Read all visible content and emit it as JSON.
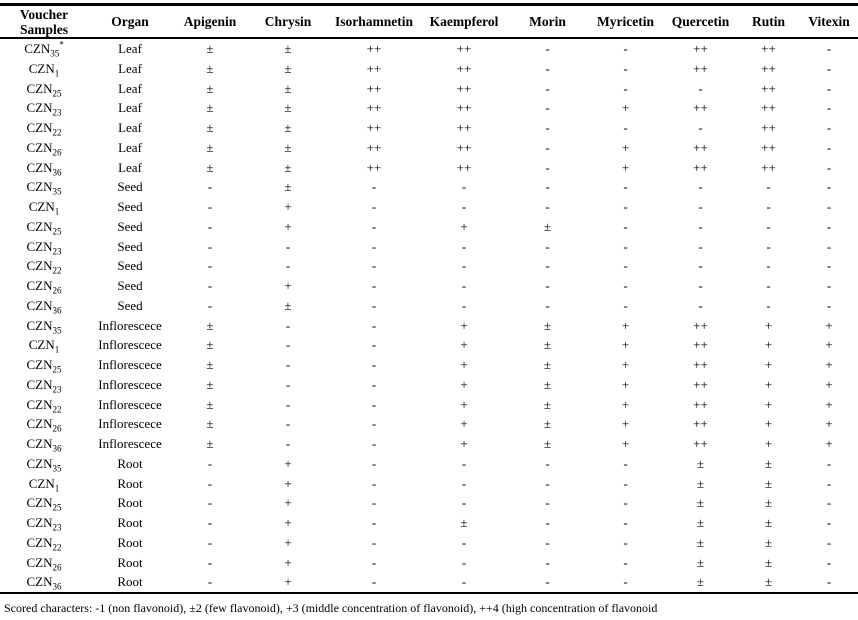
{
  "header": {
    "voucher_line1": "Voucher",
    "voucher_line2": "Samples",
    "columns": [
      "Organ",
      "Apigenin",
      "Chrysin",
      "Isorhamnetin",
      "Kaempferol",
      "Morin",
      "Myricetin",
      "Quercetin",
      "Rutin",
      "Vitexin"
    ]
  },
  "rows": [
    {
      "sample_base": "CZN",
      "sample_sub": "35",
      "sample_sup": "*",
      "organ": "Leaf",
      "scores": [
        "±",
        "±",
        "++",
        "++",
        "-",
        "-",
        "++",
        "++",
        "-"
      ]
    },
    {
      "sample_base": "CZN",
      "sample_sub": "1",
      "sample_sup": "",
      "organ": "Leaf",
      "scores": [
        "±",
        "±",
        "++",
        "++",
        "-",
        "-",
        "++",
        "++",
        "-"
      ]
    },
    {
      "sample_base": "CZN",
      "sample_sub": "25",
      "sample_sup": "",
      "organ": "Leaf",
      "scores": [
        "±",
        "±",
        "++",
        "++",
        "-",
        "-",
        "-",
        "++",
        "-"
      ]
    },
    {
      "sample_base": "CZN",
      "sample_sub": "23",
      "sample_sup": "",
      "organ": "Leaf",
      "scores": [
        "±",
        "±",
        "++",
        "++",
        "-",
        "+",
        "++",
        "++",
        "-"
      ]
    },
    {
      "sample_base": "CZN",
      "sample_sub": "22",
      "sample_sup": "",
      "organ": "Leaf",
      "scores": [
        "±",
        "±",
        "++",
        "++",
        "-",
        "-",
        "-",
        "++",
        "-"
      ]
    },
    {
      "sample_base": "CZN",
      "sample_sub": "26",
      "sample_sup": "",
      "organ": "Leaf",
      "scores": [
        "±",
        "±",
        "++",
        "++",
        "-",
        "+",
        "++",
        "++",
        "-"
      ]
    },
    {
      "sample_base": "CZN",
      "sample_sub": "36",
      "sample_sup": "",
      "organ": "Leaf",
      "scores": [
        "±",
        "±",
        "++",
        "++",
        "-",
        "+",
        "++",
        "++",
        "-"
      ]
    },
    {
      "sample_base": "CZN",
      "sample_sub": "35",
      "sample_sup": "",
      "organ": "Seed",
      "scores": [
        "-",
        "±",
        "-",
        "-",
        "-",
        "-",
        "-",
        "-",
        "-"
      ]
    },
    {
      "sample_base": "CZN",
      "sample_sub": "1",
      "sample_sup": "",
      "organ": "Seed",
      "scores": [
        "-",
        "+",
        "-",
        "-",
        "-",
        "-",
        "-",
        "-",
        "-"
      ]
    },
    {
      "sample_base": "CZN",
      "sample_sub": "25",
      "sample_sup": "",
      "organ": "Seed",
      "scores": [
        "-",
        "+",
        "-",
        "+",
        "±",
        "-",
        "-",
        "-",
        "-"
      ]
    },
    {
      "sample_base": "CZN",
      "sample_sub": "23",
      "sample_sup": "",
      "organ": "Seed",
      "scores": [
        "-",
        "-",
        "-",
        "-",
        "-",
        "-",
        "-",
        "-",
        "-"
      ]
    },
    {
      "sample_base": "CZN",
      "sample_sub": "22",
      "sample_sup": "",
      "organ": "Seed",
      "scores": [
        "-",
        "-",
        "-",
        "-",
        "-",
        "-",
        "-",
        "-",
        "-"
      ]
    },
    {
      "sample_base": "CZN",
      "sample_sub": "26",
      "sample_sup": "",
      "organ": "Seed",
      "scores": [
        "-",
        "+",
        "-",
        "-",
        "-",
        "-",
        "-",
        "-",
        "-"
      ]
    },
    {
      "sample_base": "CZN",
      "sample_sub": "36",
      "sample_sup": "",
      "organ": "Seed",
      "scores": [
        "-",
        "±",
        "-",
        "-",
        "-",
        "-",
        "-",
        "-",
        "-"
      ]
    },
    {
      "sample_base": "CZN",
      "sample_sub": "35",
      "sample_sup": "",
      "organ": "Inflorescece",
      "scores": [
        "±",
        "-",
        "-",
        "+",
        "±",
        "+",
        "++",
        "+",
        "+"
      ]
    },
    {
      "sample_base": "CZN",
      "sample_sub": "1",
      "sample_sup": "",
      "organ": "Inflorescece",
      "scores": [
        "±",
        "-",
        "-",
        "+",
        "±",
        "+",
        "++",
        "+",
        "+"
      ]
    },
    {
      "sample_base": "CZN",
      "sample_sub": "25",
      "sample_sup": "",
      "organ": "Inflorescece",
      "scores": [
        "±",
        "-",
        "-",
        "+",
        "±",
        "+",
        "++",
        "+",
        "+"
      ]
    },
    {
      "sample_base": "CZN",
      "sample_sub": "23",
      "sample_sup": "",
      "organ": "Inflorescece",
      "scores": [
        "±",
        "-",
        "-",
        "+",
        "±",
        "+",
        "++",
        "+",
        "+"
      ]
    },
    {
      "sample_base": "CZN",
      "sample_sub": "22",
      "sample_sup": "",
      "organ": "Inflorescece",
      "scores": [
        "±",
        "-",
        "-",
        "+",
        "±",
        "+",
        "++",
        "+",
        "+"
      ]
    },
    {
      "sample_base": "CZN",
      "sample_sub": "26",
      "sample_sup": "",
      "organ": "Inflorescece",
      "scores": [
        "±",
        "-",
        "-",
        "+",
        "±",
        "+",
        "++",
        "+",
        "+"
      ]
    },
    {
      "sample_base": "CZN",
      "sample_sub": "36",
      "sample_sup": "",
      "organ": "Inflorescece",
      "scores": [
        "±",
        "-",
        "-",
        "+",
        "±",
        "+",
        "++",
        "+",
        "+"
      ]
    },
    {
      "sample_base": "CZN",
      "sample_sub": "35",
      "sample_sup": "",
      "organ": "Root",
      "scores": [
        "-",
        "+",
        "-",
        "-",
        "-",
        "-",
        "±",
        "±",
        "-"
      ]
    },
    {
      "sample_base": "CZN",
      "sample_sub": "1",
      "sample_sup": "",
      "organ": "Root",
      "scores": [
        "-",
        "+",
        "-",
        "-",
        "-",
        "-",
        "±",
        "±",
        "-"
      ]
    },
    {
      "sample_base": "CZN",
      "sample_sub": "25",
      "sample_sup": "",
      "organ": "Root",
      "scores": [
        "-",
        "+",
        "-",
        "-",
        "-",
        "-",
        "±",
        "±",
        "-"
      ]
    },
    {
      "sample_base": "CZN",
      "sample_sub": "23",
      "sample_sup": "",
      "organ": "Root",
      "scores": [
        "-",
        "+",
        "-",
        "±",
        "-",
        "-",
        "±",
        "±",
        "-"
      ]
    },
    {
      "sample_base": "CZN",
      "sample_sub": "22",
      "sample_sup": "",
      "organ": "Root",
      "scores": [
        "-",
        "+",
        "-",
        "-",
        "-",
        "-",
        "±",
        "±",
        "-"
      ]
    },
    {
      "sample_base": "CZN",
      "sample_sub": "26",
      "sample_sup": "",
      "organ": "Root",
      "scores": [
        "-",
        "+",
        "-",
        "-",
        "-",
        "-",
        "±",
        "±",
        "-"
      ]
    },
    {
      "sample_base": "CZN",
      "sample_sub": "36",
      "sample_sup": "",
      "organ": "Root",
      "scores": [
        "-",
        "+",
        "-",
        "-",
        "-",
        "-",
        "±",
        "±",
        "-"
      ]
    }
  ],
  "footnote": "Scored characters: -1 (non flavonoid), ±2 (few flavonoid), +3 (middle concentration of flavonoid), ++4 (high concentration of flavonoid"
}
